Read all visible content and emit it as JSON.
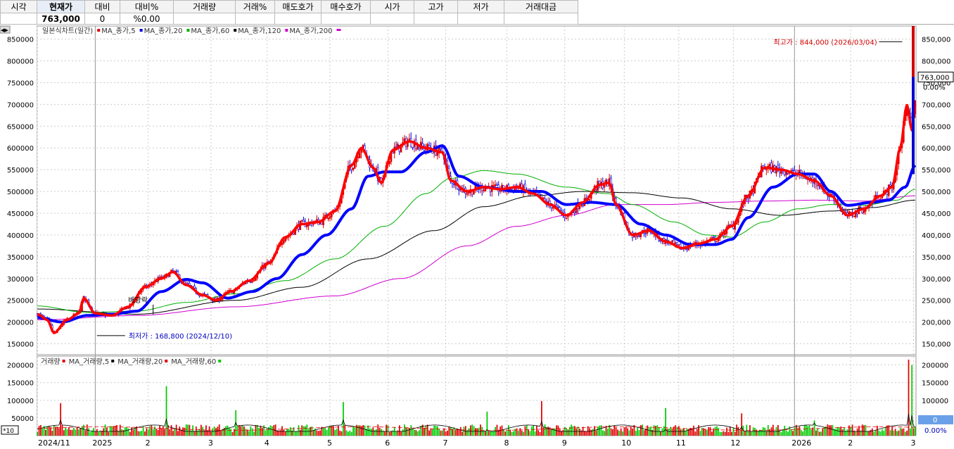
{
  "quote": {
    "headers": [
      "시각",
      "현재가",
      "대비",
      "대비%",
      "거래량",
      "거래%",
      "매도호가",
      "매수호가",
      "시가",
      "고가",
      "저가",
      "거래대금"
    ],
    "values": [
      "",
      "763,000",
      "0",
      "%0.00",
      "",
      "",
      "",
      "",
      "",
      "",
      "",
      ""
    ]
  },
  "price_legend": [
    {
      "label": "일본식차트(일간)",
      "color": "#d00000"
    },
    {
      "label": "MA_종가,5",
      "color": "#e00000"
    },
    {
      "label": "MA_종가,20",
      "color": "#0000e0"
    },
    {
      "label": "MA_종가,60",
      "color": "#00b000"
    },
    {
      "label": "MA_종가,120",
      "color": "#000000"
    },
    {
      "label": "MA_종가,200",
      "color": "#d000d0"
    }
  ],
  "volume_legend": [
    {
      "label": "거래량",
      "color": "#e00000"
    },
    {
      "label": "MA_거래량,5",
      "color": "#000000"
    },
    {
      "label": "MA_거래량,20",
      "color": "#e00000"
    },
    {
      "label": "MA_거래량,60",
      "color": "#00cc00"
    }
  ],
  "annotations": {
    "high": "최고가 : 844,000 (2026/03/04)",
    "low": "최저가 : 168,800 (2024/12/10)",
    "dividend": "배당락"
  },
  "price_tags": {
    "current": "763,000",
    "pct": "0.00%"
  },
  "volume_tags": {
    "current": "0",
    "pct": "0.00%"
  },
  "volume_scale_label": "*10",
  "colors": {
    "up": "#e00000",
    "down": "#0000e0",
    "ma5": "#ff0000",
    "ma20": "#0000ff",
    "ma60": "#00b000",
    "ma120": "#000000",
    "ma200": "#d000d0",
    "vol_up": "#e00000",
    "vol_down": "#00cc00"
  },
  "chart_data": [
    {
      "type": "candlestick",
      "x_labels": [
        "2024/11",
        "2025",
        "2",
        "3",
        "4",
        "5",
        "6",
        "7",
        "8",
        "9",
        "10",
        "11",
        "12",
        "2026",
        "2",
        "3"
      ],
      "y_ticks": [
        150000,
        200000,
        250000,
        300000,
        350000,
        400000,
        450000,
        500000,
        550000,
        600000,
        650000,
        700000,
        750000,
        800000,
        850000
      ],
      "ylim": [
        125000,
        880000
      ],
      "series": [
        {
          "name": "MA_종가,5",
          "anchors": [
            [
              0,
              218000
            ],
            [
              6,
              205000
            ],
            [
              10,
              175000
            ],
            [
              18,
              205000
            ],
            [
              25,
              220000
            ],
            [
              28,
              255000
            ],
            [
              35,
              220000
            ],
            [
              45,
              215000
            ],
            [
              55,
              235000
            ],
            [
              65,
              280000
            ],
            [
              75,
              300000
            ],
            [
              82,
              315000
            ],
            [
              90,
              285000
            ],
            [
              100,
              262000
            ],
            [
              108,
              250000
            ],
            [
              117,
              270000
            ],
            [
              128,
              295000
            ],
            [
              140,
              335000
            ],
            [
              150,
              395000
            ],
            [
              160,
              425000
            ],
            [
              170,
              430000
            ],
            [
              180,
              455000
            ],
            [
              190,
              560000
            ],
            [
              196,
              600000
            ],
            [
              203,
              555000
            ],
            [
              208,
              520000
            ],
            [
              215,
              595000
            ],
            [
              225,
              615000
            ],
            [
              235,
              600000
            ],
            [
              245,
              590000
            ],
            [
              250,
              525000
            ],
            [
              260,
              500000
            ],
            [
              270,
              510000
            ],
            [
              280,
              505000
            ],
            [
              290,
              510000
            ],
            [
              300,
              495000
            ],
            [
              310,
              470000
            ],
            [
              320,
              445000
            ],
            [
              330,
              475000
            ],
            [
              340,
              515000
            ],
            [
              346,
              520000
            ],
            [
              350,
              470000
            ],
            [
              360,
              400000
            ],
            [
              370,
              410000
            ],
            [
              380,
              385000
            ],
            [
              390,
              370000
            ],
            [
              400,
              380000
            ],
            [
              410,
              390000
            ],
            [
              420,
              420000
            ],
            [
              430,
              490000
            ],
            [
              440,
              555000
            ],
            [
              450,
              550000
            ],
            [
              460,
              540000
            ],
            [
              470,
              525000
            ],
            [
              480,
              490000
            ],
            [
              490,
              445000
            ],
            [
              500,
              460000
            ],
            [
              510,
              490000
            ],
            [
              517,
              510000
            ],
            [
              522,
              600000
            ],
            [
              526,
              700000
            ],
            [
              529,
              640000
            ],
            [
              531,
              700000
            ]
          ]
        },
        {
          "name": "MA_종가,20",
          "anchors": [
            [
              0,
              210000
            ],
            [
              15,
              200000
            ],
            [
              30,
              215000
            ],
            [
              45,
              218000
            ],
            [
              60,
              225000
            ],
            [
              75,
              270000
            ],
            [
              90,
              298000
            ],
            [
              100,
              290000
            ],
            [
              115,
              255000
            ],
            [
              130,
              270000
            ],
            [
              145,
              300000
            ],
            [
              160,
              355000
            ],
            [
              175,
              400000
            ],
            [
              190,
              460000
            ],
            [
              200,
              535000
            ],
            [
              210,
              545000
            ],
            [
              220,
              545000
            ],
            [
              235,
              590000
            ],
            [
              245,
              605000
            ],
            [
              255,
              535000
            ],
            [
              270,
              510000
            ],
            [
              290,
              500000
            ],
            [
              305,
              500000
            ],
            [
              320,
              470000
            ],
            [
              335,
              475000
            ],
            [
              350,
              470000
            ],
            [
              365,
              425000
            ],
            [
              380,
              400000
            ],
            [
              395,
              378000
            ],
            [
              410,
              378000
            ],
            [
              420,
              390000
            ],
            [
              430,
              440000
            ],
            [
              445,
              510000
            ],
            [
              460,
              540000
            ],
            [
              470,
              540000
            ],
            [
              480,
              500000
            ],
            [
              490,
              468000
            ],
            [
              505,
              475000
            ],
            [
              515,
              480000
            ],
            [
              525,
              510000
            ],
            [
              531,
              560000
            ]
          ]
        },
        {
          "name": "MA_종가,60",
          "anchors": [
            [
              0,
              237000
            ],
            [
              30,
              222000
            ],
            [
              60,
              225000
            ],
            [
              90,
              245000
            ],
            [
              120,
              265000
            ],
            [
              150,
              295000
            ],
            [
              180,
              345000
            ],
            [
              210,
              420000
            ],
            [
              235,
              495000
            ],
            [
              250,
              530000
            ],
            [
              270,
              548000
            ],
            [
              290,
              540000
            ],
            [
              320,
              510000
            ],
            [
              345,
              495000
            ],
            [
              360,
              470000
            ],
            [
              385,
              430000
            ],
            [
              405,
              400000
            ],
            [
              420,
              395000
            ],
            [
              440,
              430000
            ],
            [
              460,
              460000
            ],
            [
              480,
              470000
            ],
            [
              500,
              468000
            ],
            [
              520,
              480000
            ],
            [
              531,
              505000
            ]
          ]
        },
        {
          "name": "MA_종가,120",
          "anchors": [
            [
              0,
              230000
            ],
            [
              60,
              218000
            ],
            [
              120,
              250000
            ],
            [
              160,
              280000
            ],
            [
              200,
              345000
            ],
            [
              240,
              410000
            ],
            [
              270,
              465000
            ],
            [
              300,
              490000
            ],
            [
              330,
              500000
            ],
            [
              360,
              497000
            ],
            [
              390,
              485000
            ],
            [
              420,
              460000
            ],
            [
              450,
              445000
            ],
            [
              480,
              455000
            ],
            [
              505,
              463000
            ],
            [
              531,
              480000
            ]
          ]
        },
        {
          "name": "MA_종가,200",
          "anchors": [
            [
              0,
              205000
            ],
            [
              60,
              215000
            ],
            [
              120,
              235000
            ],
            [
              180,
              260000
            ],
            [
              220,
              300000
            ],
            [
              260,
              375000
            ],
            [
              290,
              420000
            ],
            [
              320,
              445000
            ],
            [
              350,
              470000
            ],
            [
              380,
              470000
            ],
            [
              410,
              475000
            ],
            [
              440,
              478000
            ],
            [
              470,
              480000
            ],
            [
              500,
              478000
            ],
            [
              531,
              490000
            ]
          ]
        }
      ],
      "high": {
        "value": 844000,
        "date": "2026/03/04"
      },
      "low": {
        "value": 168800,
        "date": "2024/12/10"
      },
      "current": 763000
    },
    {
      "type": "bar",
      "title": "거래량",
      "y_ticks": [
        50000,
        100000,
        150000,
        200000
      ],
      "ylim": [
        0,
        225000
      ],
      "spikes": [
        [
          14,
          92000
        ],
        [
          48,
          30000
        ],
        [
          78,
          140000
        ],
        [
          120,
          72000
        ],
        [
          185,
          95000
        ],
        [
          272,
          68000
        ],
        [
          305,
          98000
        ],
        [
          380,
          78000
        ],
        [
          426,
          63000
        ],
        [
          470,
          43000
        ],
        [
          527,
          215000
        ],
        [
          529,
          200000
        ]
      ]
    }
  ]
}
